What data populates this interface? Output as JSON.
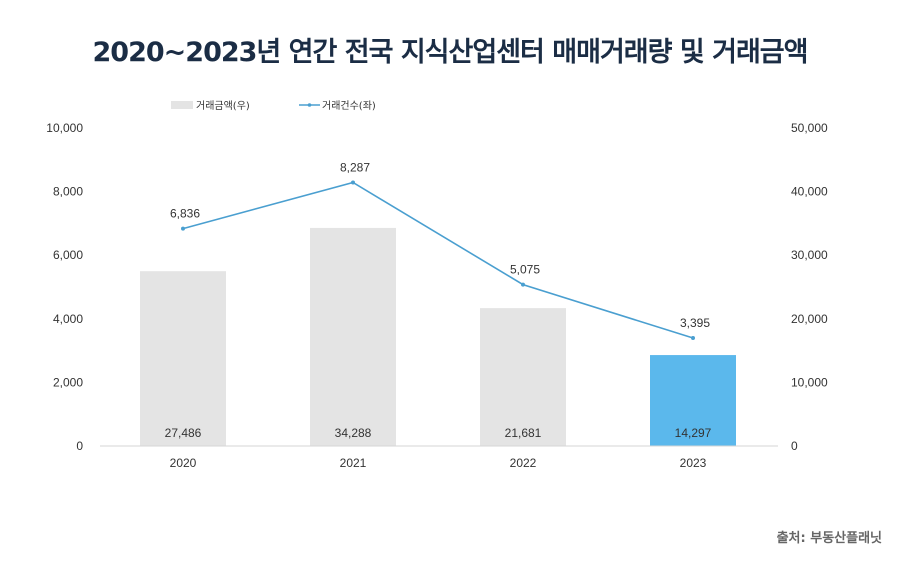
{
  "chart_data": {
    "type": "bar+line",
    "title": "2020~2023년 연간 전국 지식산업센터 매매거래량 및 거래금액",
    "categories": [
      "2020",
      "2021",
      "2022",
      "2023"
    ],
    "series": [
      {
        "name": "거래금액(우)",
        "type": "bar",
        "axis": "right",
        "values": [
          27486,
          34288,
          21681,
          14297
        ],
        "labels": [
          "27,486",
          "34,288",
          "21,681",
          "14,297"
        ],
        "colors": [
          "#e4e4e4",
          "#e4e4e4",
          "#e4e4e4",
          "#5bb8ec"
        ]
      },
      {
        "name": "거래건수(좌)",
        "type": "line",
        "axis": "left",
        "values": [
          6836,
          8287,
          5075,
          3395
        ],
        "labels": [
          "6,836",
          "8,287",
          "5,075",
          "3,395"
        ],
        "color": "#4a9fd0"
      }
    ],
    "left_axis": {
      "range": [
        0,
        10000
      ],
      "ticks": [
        "0",
        "2,000",
        "4,000",
        "6,000",
        "8,000",
        "10,000"
      ]
    },
    "right_axis": {
      "range": [
        0,
        50000
      ],
      "ticks": [
        "0",
        "10,000",
        "20,000",
        "30,000",
        "40,000",
        "50,000"
      ]
    },
    "legend_position": "top-left",
    "grid": false
  },
  "source": "출처: 부동산플래닛"
}
